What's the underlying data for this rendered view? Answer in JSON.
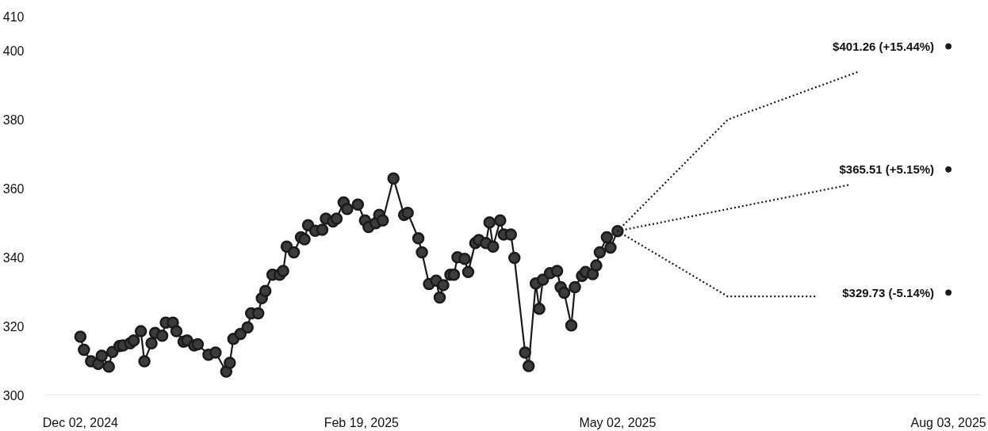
{
  "chart_data": {
    "type": "line",
    "xlim": [
      "2024-11-22",
      "2025-08-12"
    ],
    "ylim": [
      300,
      410
    ],
    "yticks": [
      300,
      320,
      340,
      360,
      380,
      400,
      410
    ],
    "xticks": [
      {
        "value": "2024-12-02",
        "label": "Dec 02, 2024"
      },
      {
        "value": "2025-02-19",
        "label": "Feb 19, 2025"
      },
      {
        "value": "2025-05-02",
        "label": "May 02, 2025"
      },
      {
        "value": "2025-08-03",
        "label": "Aug 03, 2025"
      }
    ],
    "grid": false,
    "series": [
      {
        "color": "#1a1a1a",
        "marker": "circle",
        "line_style": "solid",
        "x": [
          "2024-12-02",
          "2024-12-03",
          "2024-12-05",
          "2024-12-07",
          "2024-12-08",
          "2024-12-10",
          "2024-12-11",
          "2024-12-13",
          "2024-12-14",
          "2024-12-16",
          "2024-12-17",
          "2024-12-19",
          "2024-12-20",
          "2024-12-22",
          "2024-12-23",
          "2024-12-25",
          "2024-12-26",
          "2024-12-28",
          "2024-12-29",
          "2024-12-31",
          "2025-01-01",
          "2025-01-03",
          "2025-01-04",
          "2025-01-07",
          "2025-01-09",
          "2025-01-12",
          "2025-01-13",
          "2025-01-14",
          "2025-01-16",
          "2025-01-18",
          "2025-01-19",
          "2025-01-21",
          "2025-01-22",
          "2025-01-23",
          "2025-01-25",
          "2025-01-27",
          "2025-01-28",
          "2025-01-29",
          "2025-01-31",
          "2025-02-02",
          "2025-02-03",
          "2025-02-04",
          "2025-02-06",
          "2025-02-08",
          "2025-02-09",
          "2025-02-11",
          "2025-02-12",
          "2025-02-14",
          "2025-02-15",
          "2025-02-18",
          "2025-02-20",
          "2025-02-21",
          "2025-02-23",
          "2025-02-24",
          "2025-02-25",
          "2025-02-28",
          "2025-03-03",
          "2025-03-04",
          "2025-03-07",
          "2025-03-08",
          "2025-03-10",
          "2025-03-12",
          "2025-03-13",
          "2025-03-14",
          "2025-03-16",
          "2025-03-17",
          "2025-03-18",
          "2025-03-20",
          "2025-03-21",
          "2025-03-23",
          "2025-03-24",
          "2025-03-26",
          "2025-03-27",
          "2025-03-28",
          "2025-03-30",
          "2025-03-31",
          "2025-04-02",
          "2025-04-03",
          "2025-04-06",
          "2025-04-07",
          "2025-04-09",
          "2025-04-10",
          "2025-04-11",
          "2025-04-13",
          "2025-04-15",
          "2025-04-16",
          "2025-04-17",
          "2025-04-19",
          "2025-04-20",
          "2025-04-22",
          "2025-04-23",
          "2025-04-25",
          "2025-04-26",
          "2025-04-27",
          "2025-04-29",
          "2025-04-30",
          "2025-05-02"
        ],
        "values": [
          316.9,
          313.1,
          309.8,
          309.0,
          311.4,
          308.2,
          312.5,
          314.2,
          314.4,
          315.0,
          315.8,
          318.5,
          309.8,
          315.0,
          318.0,
          317.2,
          321.0,
          321.0,
          318.5,
          315.5,
          315.8,
          314.4,
          314.7,
          311.7,
          312.3,
          306.8,
          309.3,
          316.3,
          317.7,
          319.6,
          323.7,
          323.7,
          328.1,
          330.2,
          334.9,
          334.9,
          336.0,
          343.1,
          341.4,
          345.8,
          345.2,
          349.3,
          347.7,
          348.0,
          351.2,
          350.4,
          351.2,
          355.9,
          354.0,
          355.3,
          350.7,
          348.8,
          349.9,
          352.3,
          350.7,
          362.9,
          352.3,
          352.9,
          345.5,
          341.4,
          332.2,
          333.2,
          328.3,
          331.9,
          334.9,
          334.9,
          340.0,
          339.5,
          335.7,
          344.1,
          345.0,
          344.1,
          350.1,
          343.1,
          350.7,
          346.6,
          346.6,
          339.8,
          312.3,
          308.4,
          332.4,
          325.0,
          333.5,
          335.4,
          336.0,
          331.3,
          329.7,
          320.2,
          331.3,
          334.6,
          335.7,
          335.1,
          337.6,
          341.4,
          345.8,
          342.8,
          347.6
        ]
      },
      {
        "type": "line",
        "color": "#1a1a1a",
        "marker": "none",
        "line_style": "dotted",
        "x": [
          "2025-05-02",
          "2025-06-02",
          "2025-07-09"
        ],
        "values": [
          347.6,
          380.0,
          394.0
        ]
      },
      {
        "type": "line",
        "color": "#1a1a1a",
        "marker": "none",
        "line_style": "dotted",
        "x": [
          "2025-05-02",
          "2025-07-06"
        ],
        "values": [
          347.6,
          361.0
        ]
      },
      {
        "type": "line",
        "color": "#1a1a1a",
        "marker": "none",
        "line_style": "dotted",
        "x": [
          "2025-05-02",
          "2025-06-02",
          "2025-06-27"
        ],
        "values": [
          347.6,
          328.6,
          328.6
        ]
      },
      {
        "type": "scatter",
        "color": "#1a1a1a",
        "marker": "circle",
        "x": [
          "2025-08-03",
          "2025-08-03",
          "2025-08-03"
        ],
        "values": [
          401.26,
          365.51,
          329.73
        ],
        "value_labels": [
          "$401.26 (+15.44%)",
          "$365.51 (+5.15%)",
          "$329.73 (-5.14%)"
        ]
      }
    ]
  }
}
